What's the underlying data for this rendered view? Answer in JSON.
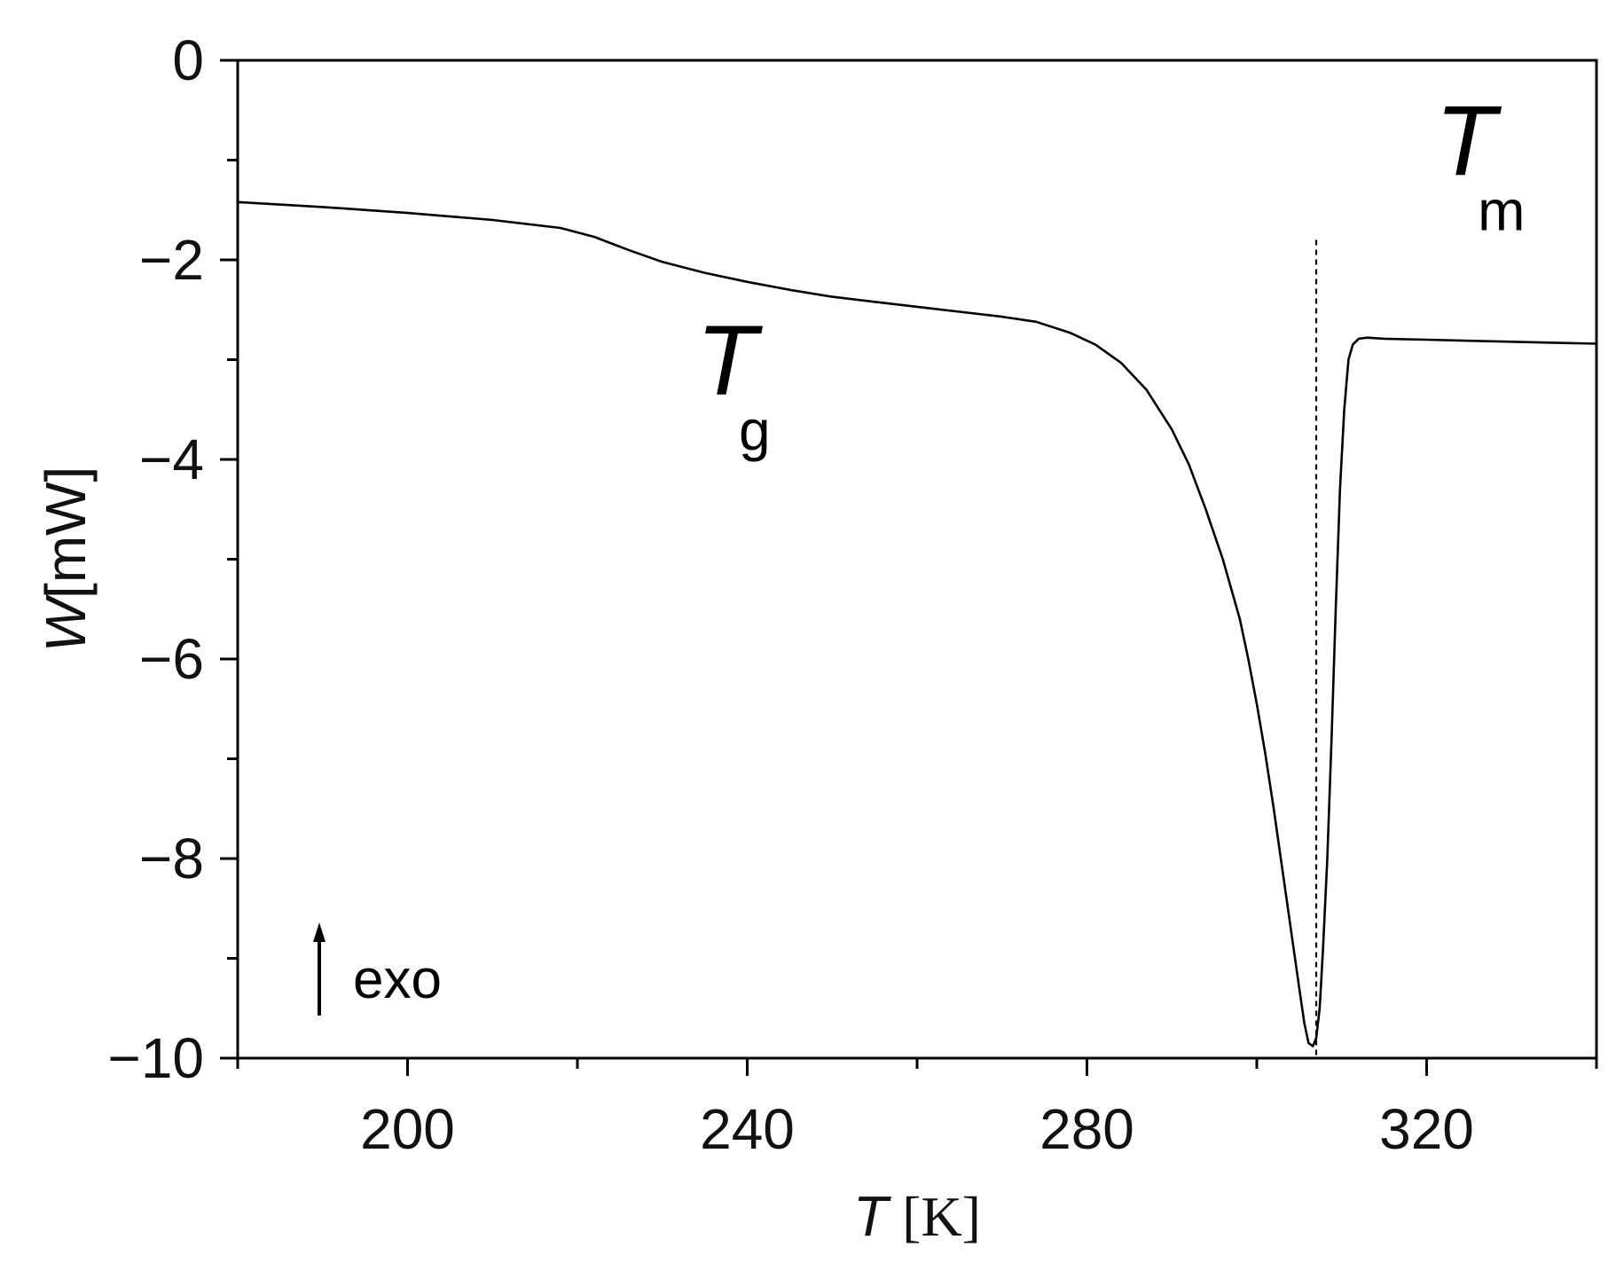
{
  "chart_data": {
    "type": "line",
    "title": "",
    "x_axis": {
      "label_symbol": "T",
      "label_unit": "[K]",
      "range": [
        180,
        340
      ],
      "ticks": [
        200,
        240,
        280,
        320
      ],
      "tick_labels": [
        "200",
        "240",
        "280",
        "320"
      ],
      "minor_ticks": [
        180,
        220,
        260,
        300,
        340
      ]
    },
    "y_axis": {
      "label_symbol": "W",
      "label_unit": "[mW]",
      "range": [
        -10,
        0
      ],
      "ticks": [
        0,
        -2,
        -4,
        -6,
        -8,
        -10
      ],
      "tick_labels": [
        "0",
        "−2",
        "−4",
        "−6",
        "−8",
        "−10"
      ],
      "minor_ticks": [
        -1,
        -3,
        -5,
        -7,
        -9
      ]
    },
    "grid": false,
    "series": [
      {
        "color": "#000000",
        "x": [
          180,
          190,
          200,
          210,
          218,
          222,
          226,
          230,
          235,
          240,
          245,
          250,
          255,
          260,
          265,
          270,
          274,
          278,
          281,
          284,
          287,
          290,
          292,
          294,
          296,
          298,
          299,
          300,
          301,
          302,
          303,
          304,
          305,
          305.6,
          306.1,
          306.6,
          307.0,
          307.4,
          307.8,
          308.3,
          308.8,
          309.3,
          309.8,
          310.3,
          310.8,
          311.3,
          312,
          313,
          315,
          320,
          330,
          340
        ],
        "y": [
          -1.42,
          -1.47,
          -1.53,
          -1.6,
          -1.68,
          -1.77,
          -1.9,
          -2.02,
          -2.13,
          -2.22,
          -2.3,
          -2.37,
          -2.42,
          -2.47,
          -2.52,
          -2.57,
          -2.62,
          -2.73,
          -2.85,
          -3.03,
          -3.3,
          -3.7,
          -4.05,
          -4.5,
          -5.0,
          -5.6,
          -6.0,
          -6.45,
          -6.95,
          -7.5,
          -8.1,
          -8.7,
          -9.3,
          -9.65,
          -9.85,
          -9.88,
          -9.8,
          -9.5,
          -8.9,
          -8.0,
          -6.8,
          -5.5,
          -4.3,
          -3.5,
          -3.0,
          -2.85,
          -2.79,
          -2.78,
          -2.79,
          -2.8,
          -2.82,
          -2.84
        ]
      }
    ],
    "reference_line": {
      "x": 307,
      "y_top": -1.8,
      "style": "dotted"
    },
    "annotations": [
      {
        "main": "T",
        "sub": "g",
        "x": 234,
        "y": -3.35
      },
      {
        "main": "T",
        "sub": "m",
        "x": 321,
        "y": -1.15
      }
    ],
    "exo_indicator": {
      "text": "exo",
      "direction": "up"
    }
  }
}
